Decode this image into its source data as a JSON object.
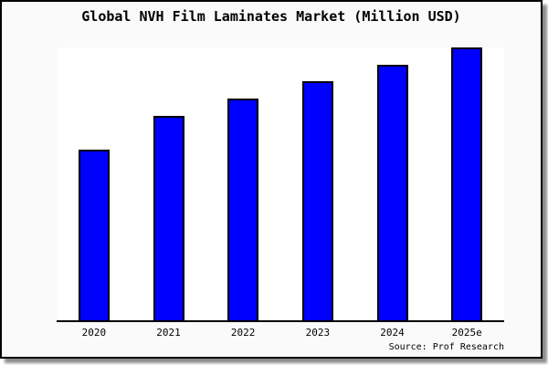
{
  "title": "Global NVH Film Laminates Market (Million USD)",
  "source_text": "Source: Prof Research",
  "colors": {
    "bar_fill": "#0000ff",
    "bar_border": "#000000",
    "axis": "#000000",
    "plot_background": "#ffffff",
    "frame_background": "#fafafa",
    "frame_border": "#000000",
    "title_text": "#000000"
  },
  "chart_data": {
    "type": "bar",
    "title": "Global NVH Film Laminates Market (Million USD)",
    "categories": [
      "2020",
      "2021",
      "2022",
      "2023",
      "2024",
      "2025e"
    ],
    "values": [
      100,
      120,
      130,
      140,
      150,
      160
    ],
    "xlabel": "",
    "ylabel": "",
    "ylim": [
      0,
      160
    ],
    "y_axis_shown": false,
    "grid": false,
    "legend": false,
    "annotation": "Source: Prof Research"
  }
}
